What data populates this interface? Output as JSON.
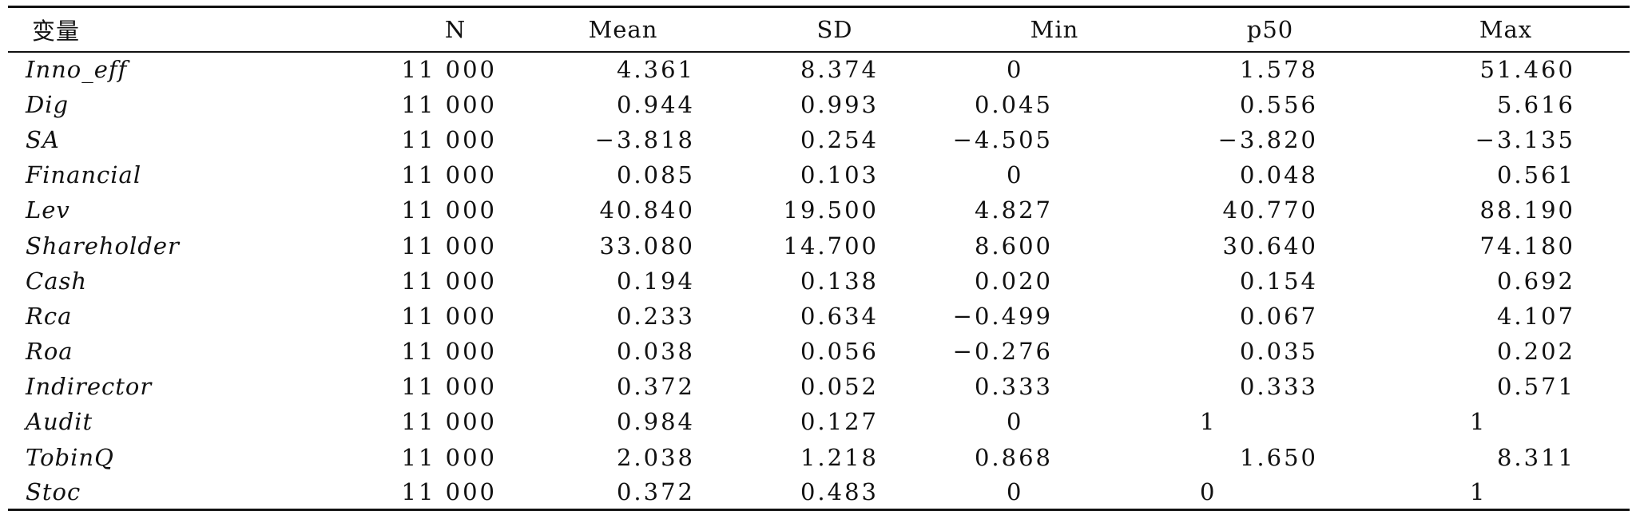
{
  "table": {
    "headers": [
      "变量",
      "N",
      "Mean",
      "SD",
      "Min",
      "p50",
      "Max"
    ],
    "rows": [
      {
        "var": "Inno_eff",
        "n": "11 000",
        "mean": "4.361",
        "sd": "8.374",
        "min": "0",
        "p50": "1.578",
        "max": "51.460"
      },
      {
        "var": "Dig",
        "n": "11 000",
        "mean": "0.944",
        "sd": "0.993",
        "min": "0.045",
        "p50": "0.556",
        "max": "5.616"
      },
      {
        "var": "SA",
        "n": "11 000",
        "mean": "−3.818",
        "sd": "0.254",
        "min": "−4.505",
        "p50": "−3.820",
        "max": "−3.135"
      },
      {
        "var": "Financial",
        "n": "11 000",
        "mean": "0.085",
        "sd": "0.103",
        "min": "0",
        "p50": "0.048",
        "max": "0.561"
      },
      {
        "var": "Lev",
        "n": "11 000",
        "mean": "40.840",
        "sd": "19.500",
        "min": "4.827",
        "p50": "40.770",
        "max": "88.190"
      },
      {
        "var": "Shareholder",
        "n": "11 000",
        "mean": "33.080",
        "sd": "14.700",
        "min": "8.600",
        "p50": "30.640",
        "max": "74.180"
      },
      {
        "var": "Cash",
        "n": "11 000",
        "mean": "0.194",
        "sd": "0.138",
        "min": "0.020",
        "p50": "0.154",
        "max": "0.692"
      },
      {
        "var": "Rca",
        "n": "11 000",
        "mean": "0.233",
        "sd": "0.634",
        "min": "−0.499",
        "p50": "0.067",
        "max": "4.107"
      },
      {
        "var": "Roa",
        "n": "11 000",
        "mean": "0.038",
        "sd": "0.056",
        "min": "−0.276",
        "p50": "0.035",
        "max": "0.202"
      },
      {
        "var": "Indirector",
        "n": "11 000",
        "mean": "0.372",
        "sd": "0.052",
        "min": "0.333",
        "p50": "0.333",
        "max": "0.571"
      },
      {
        "var": "Audit",
        "n": "11 000",
        "mean": "0.984",
        "sd": "0.127",
        "min": "0",
        "p50": "1",
        "max": "1"
      },
      {
        "var": "TobinQ",
        "n": "11 000",
        "mean": "2.038",
        "sd": "1.218",
        "min": "0.868",
        "p50": "1.650",
        "max": "8.311"
      },
      {
        "var": "Stoc",
        "n": "11 000",
        "mean": "0.372",
        "sd": "0.483",
        "min": "0",
        "p50": "0",
        "max": "1"
      }
    ]
  }
}
